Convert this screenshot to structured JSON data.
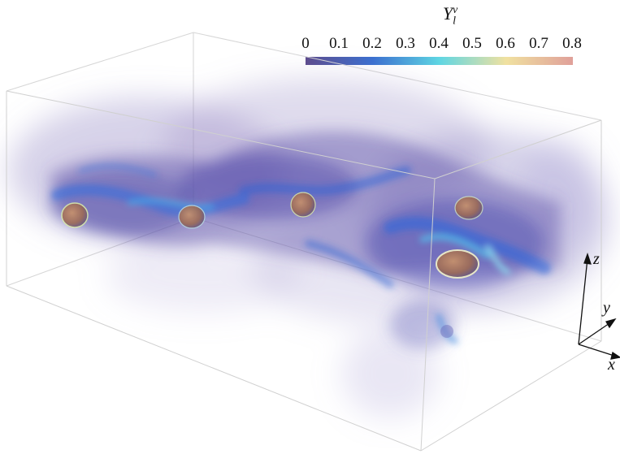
{
  "colorbar": {
    "variable_base": "Y",
    "variable_sub": "l",
    "variable_sup": "v",
    "tick_labels": [
      "0",
      "0.1",
      "0.2",
      "0.3",
      "0.4",
      "0.5",
      "0.6",
      "0.7",
      "0.8"
    ],
    "min": 0,
    "max": 0.8,
    "colors": [
      "#5b4a8c",
      "#3a6fd0",
      "#5fd6e3",
      "#f0e1a0",
      "#e0a09a"
    ]
  },
  "axes": {
    "x_label": "x",
    "y_label": "y",
    "z_label": "z"
  },
  "scene": {
    "box_edge_color": "#cfcfcf",
    "droplet_color": "#b07a5a",
    "droplet_count": 6
  }
}
